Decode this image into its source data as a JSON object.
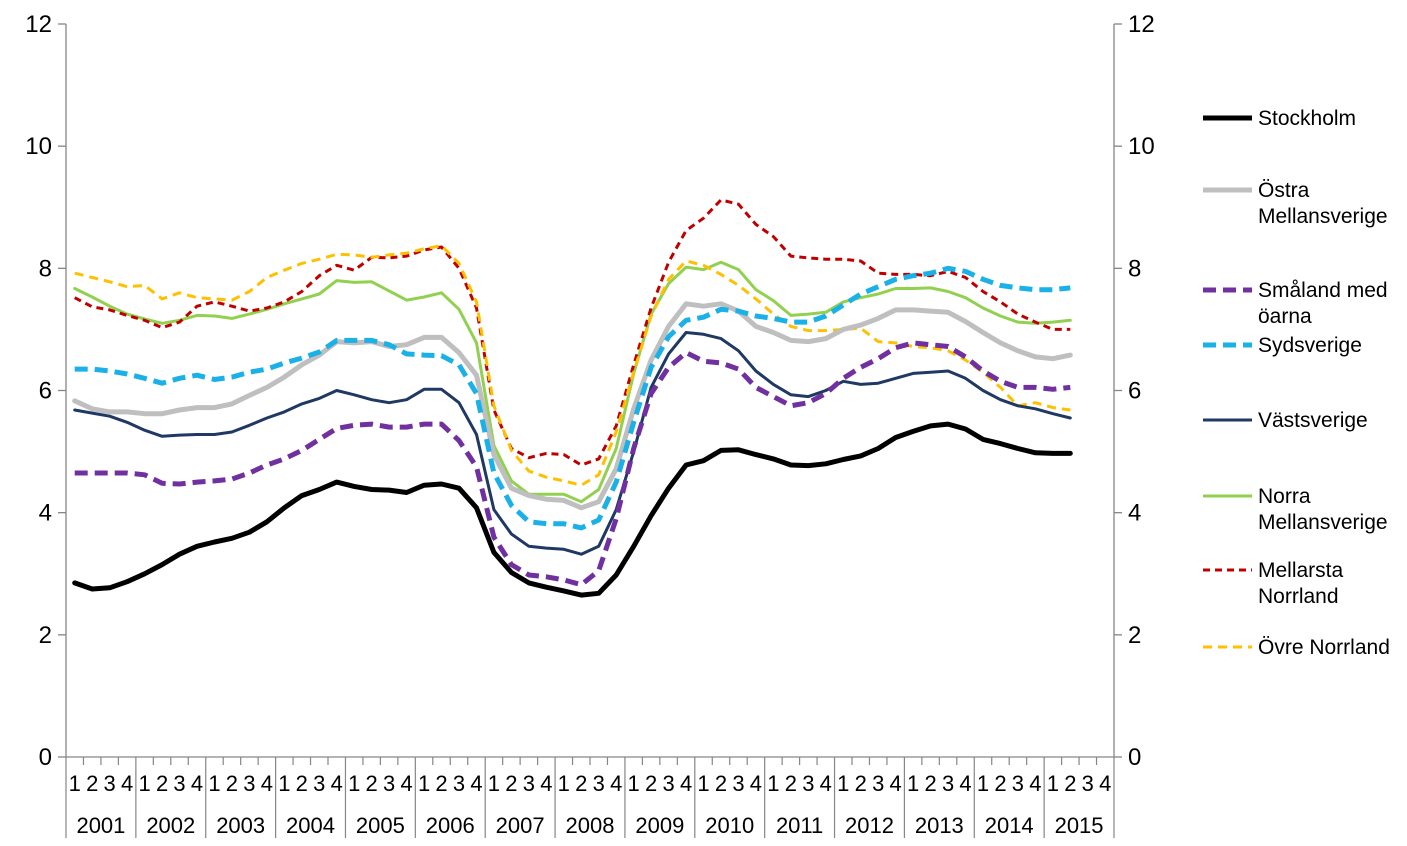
{
  "chart_data": {
    "type": "line",
    "title": "",
    "xlabel": "",
    "ylabel": "",
    "ylim": [
      0,
      12
    ],
    "y_ticks": [
      "0",
      "2",
      "4",
      "6",
      "8",
      "10",
      "12"
    ],
    "y_ticks_right": [
      "0",
      "2",
      "4",
      "6",
      "8",
      "10",
      "12"
    ],
    "grid": false,
    "legend_position": "right",
    "quarter_labels": [
      "1",
      "2",
      "3",
      "4",
      "1",
      "2",
      "3",
      "4",
      "1",
      "2",
      "3",
      "4",
      "1",
      "2",
      "3",
      "4",
      "1",
      "2",
      "3",
      "4",
      "1",
      "2",
      "3",
      "4",
      "1",
      "2",
      "3",
      "4",
      "1",
      "2",
      "3",
      "4",
      "1",
      "2",
      "3",
      "4",
      "1",
      "2",
      "3",
      "4",
      "1",
      "2",
      "3",
      "4",
      "1",
      "2",
      "3",
      "4",
      "1",
      "2",
      "3",
      "4",
      "1",
      "2",
      "3",
      "4",
      "1",
      "2",
      "3",
      "4"
    ],
    "year_labels": [
      "2001",
      "2002",
      "2003",
      "2004",
      "2005",
      "2006",
      "2007",
      "2008",
      "2009",
      "2010",
      "2011",
      "2012",
      "2013",
      "2014",
      "2015"
    ],
    "series": [
      {
        "name": "Stockholm",
        "legend": [
          "Stockholm"
        ],
        "color": "#000000",
        "width": 5,
        "dash": "",
        "values": [
          2.85,
          2.75,
          2.77,
          2.87,
          3.0,
          3.15,
          3.32,
          3.45,
          3.52,
          3.58,
          3.68,
          3.85,
          4.08,
          4.28,
          4.38,
          4.5,
          4.43,
          4.38,
          4.37,
          4.33,
          4.45,
          4.47,
          4.4,
          4.08,
          3.35,
          3.02,
          2.85,
          2.78,
          2.72,
          2.65,
          2.68,
          2.98,
          3.45,
          3.95,
          4.4,
          4.78,
          4.85,
          5.02,
          5.03,
          4.95,
          4.88,
          4.78,
          4.77,
          4.8,
          4.87,
          4.93,
          5.05,
          5.23,
          5.33,
          5.42,
          5.45,
          5.37,
          5.2,
          5.13,
          5.05,
          4.98,
          4.97,
          4.97
        ]
      },
      {
        "name": "Östra Mellansverige",
        "legend": [
          "Östra",
          "Mellansverige"
        ],
        "color": "#bfbfbf",
        "width": 5,
        "dash": "",
        "values": [
          5.83,
          5.7,
          5.65,
          5.65,
          5.62,
          5.62,
          5.68,
          5.72,
          5.72,
          5.78,
          5.92,
          6.05,
          6.22,
          6.42,
          6.58,
          6.8,
          6.78,
          6.8,
          6.72,
          6.75,
          6.87,
          6.87,
          6.62,
          6.25,
          4.95,
          4.4,
          4.28,
          4.22,
          4.2,
          4.08,
          4.18,
          4.72,
          5.7,
          6.5,
          7.05,
          7.42,
          7.38,
          7.42,
          7.3,
          7.05,
          6.95,
          6.82,
          6.8,
          6.85,
          7.0,
          7.07,
          7.18,
          7.32,
          7.32,
          7.3,
          7.28,
          7.13,
          6.95,
          6.78,
          6.65,
          6.55,
          6.52,
          6.58
        ]
      },
      {
        "name": "Småland med öarna",
        "legend": [
          "Småland med",
          "öarna"
        ],
        "color": "#7030a0",
        "width": 5,
        "dash": "13,7",
        "values": [
          4.65,
          4.65,
          4.65,
          4.65,
          4.62,
          4.48,
          4.47,
          4.5,
          4.52,
          4.55,
          4.65,
          4.78,
          4.88,
          5.02,
          5.2,
          5.38,
          5.43,
          5.45,
          5.4,
          5.4,
          5.45,
          5.45,
          5.18,
          4.75,
          3.6,
          3.15,
          2.98,
          2.95,
          2.9,
          2.82,
          3.05,
          3.9,
          5.05,
          5.95,
          6.38,
          6.62,
          6.48,
          6.45,
          6.35,
          6.05,
          5.9,
          5.75,
          5.8,
          5.95,
          6.2,
          6.38,
          6.52,
          6.7,
          6.78,
          6.75,
          6.72,
          6.55,
          6.32,
          6.15,
          6.05,
          6.05,
          6.02,
          6.05
        ]
      },
      {
        "name": "Sydsverige",
        "legend": [
          "Sydsverige"
        ],
        "color": "#1ab0e8",
        "width": 5,
        "dash": "13,7",
        "values": [
          6.35,
          6.35,
          6.32,
          6.27,
          6.2,
          6.12,
          6.2,
          6.25,
          6.18,
          6.22,
          6.3,
          6.35,
          6.45,
          6.53,
          6.63,
          6.82,
          6.82,
          6.82,
          6.75,
          6.6,
          6.58,
          6.57,
          6.42,
          5.95,
          4.65,
          4.12,
          3.85,
          3.82,
          3.82,
          3.75,
          3.88,
          4.5,
          5.48,
          6.38,
          6.88,
          7.15,
          7.2,
          7.33,
          7.3,
          7.22,
          7.18,
          7.12,
          7.12,
          7.22,
          7.4,
          7.58,
          7.7,
          7.82,
          7.88,
          7.92,
          8.0,
          7.95,
          7.82,
          7.72,
          7.68,
          7.65,
          7.65,
          7.68
        ]
      },
      {
        "name": "Västsverige",
        "legend": [
          "Västsverige"
        ],
        "color": "#1f3864",
        "width": 3,
        "dash": "",
        "values": [
          5.68,
          5.63,
          5.58,
          5.48,
          5.35,
          5.25,
          5.27,
          5.28,
          5.28,
          5.32,
          5.43,
          5.55,
          5.65,
          5.78,
          5.87,
          6.0,
          5.93,
          5.85,
          5.8,
          5.85,
          6.02,
          6.02,
          5.8,
          5.28,
          4.05,
          3.65,
          3.45,
          3.42,
          3.4,
          3.32,
          3.45,
          4.05,
          5.0,
          6.05,
          6.6,
          6.95,
          6.92,
          6.85,
          6.65,
          6.32,
          6.1,
          5.93,
          5.9,
          6.0,
          6.15,
          6.1,
          6.12,
          6.2,
          6.28,
          6.3,
          6.32,
          6.2,
          6.0,
          5.85,
          5.75,
          5.7,
          5.62,
          5.55
        ]
      },
      {
        "name": "Norra Mellansverige",
        "legend": [
          "Norra",
          "Mellansverige"
        ],
        "color": "#92d050",
        "width": 3,
        "dash": "",
        "values": [
          7.67,
          7.53,
          7.38,
          7.25,
          7.17,
          7.1,
          7.15,
          7.23,
          7.22,
          7.18,
          7.25,
          7.33,
          7.42,
          7.5,
          7.58,
          7.8,
          7.77,
          7.78,
          7.63,
          7.48,
          7.53,
          7.6,
          7.33,
          6.78,
          5.1,
          4.52,
          4.3,
          4.3,
          4.3,
          4.18,
          4.38,
          5.05,
          6.28,
          7.25,
          7.75,
          8.02,
          7.98,
          8.1,
          7.98,
          7.65,
          7.47,
          7.23,
          7.25,
          7.28,
          7.45,
          7.52,
          7.58,
          7.67,
          7.67,
          7.68,
          7.62,
          7.52,
          7.35,
          7.22,
          7.12,
          7.1,
          7.12,
          7.15
        ]
      },
      {
        "name": "Mellarsta Norrland",
        "legend": [
          "Mellarsta",
          "Norrland"
        ],
        "color": "#c00000",
        "width": 3,
        "dash": "7,5",
        "values": [
          7.52,
          7.37,
          7.32,
          7.23,
          7.15,
          7.03,
          7.12,
          7.38,
          7.45,
          7.38,
          7.3,
          7.35,
          7.45,
          7.62,
          7.88,
          8.05,
          7.97,
          8.18,
          8.17,
          8.2,
          8.3,
          8.35,
          8.0,
          7.35,
          5.68,
          5.05,
          4.9,
          4.97,
          4.95,
          4.78,
          4.88,
          5.42,
          6.42,
          7.35,
          8.1,
          8.62,
          8.82,
          9.12,
          9.05,
          8.72,
          8.52,
          8.2,
          8.17,
          8.15,
          8.15,
          8.12,
          7.92,
          7.9,
          7.9,
          7.88,
          7.95,
          7.85,
          7.62,
          7.45,
          7.25,
          7.12,
          7.0,
          7.0
        ]
      },
      {
        "name": "Övre Norrland",
        "legend": [
          "Övre Norrland"
        ],
        "color": "#ffc000",
        "width": 3,
        "dash": "9,6",
        "values": [
          7.92,
          7.85,
          7.78,
          7.7,
          7.72,
          7.5,
          7.6,
          7.52,
          7.5,
          7.48,
          7.62,
          7.85,
          7.97,
          8.08,
          8.15,
          8.23,
          8.22,
          8.18,
          8.22,
          8.25,
          8.32,
          8.37,
          8.08,
          7.45,
          5.75,
          5.02,
          4.68,
          4.58,
          4.52,
          4.45,
          4.62,
          5.32,
          6.3,
          7.22,
          7.82,
          8.12,
          8.05,
          7.9,
          7.72,
          7.5,
          7.25,
          7.05,
          6.98,
          6.98,
          7.0,
          7.02,
          6.8,
          6.78,
          6.72,
          6.7,
          6.65,
          6.5,
          6.3,
          6.05,
          5.75,
          5.8,
          5.72,
          5.68
        ]
      }
    ]
  }
}
